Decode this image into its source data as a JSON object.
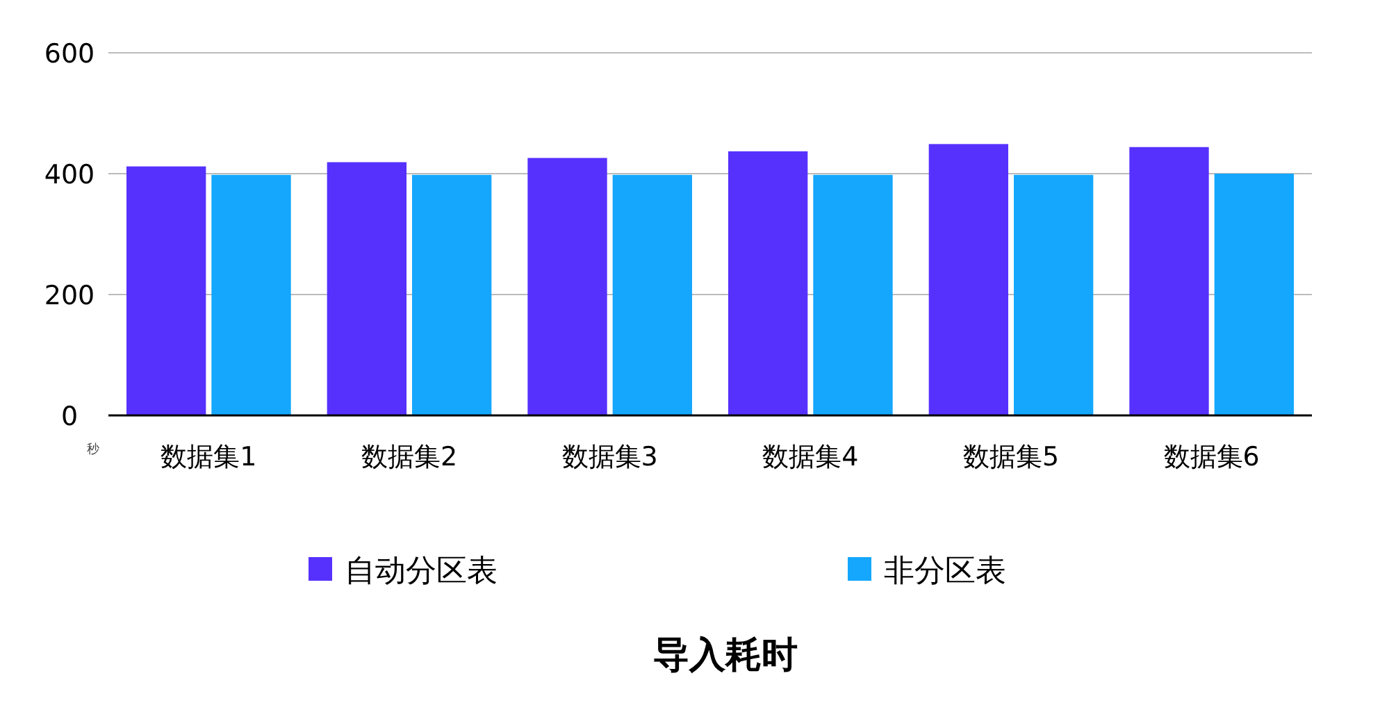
{
  "chart_data": {
    "type": "bar",
    "title": "导入耗时",
    "ylabel": "秒",
    "categories": [
      "数据集1",
      "数据集2",
      "数据集3",
      "数据集4",
      "数据集5",
      "数据集6"
    ],
    "series": [
      {
        "name": "自动分区表",
        "color": "#5631fe",
        "values": [
          412,
          419,
          426,
          437,
          449,
          444
        ]
      },
      {
        "name": "非分区表",
        "color": "#14a7fd",
        "values": [
          398,
          398,
          398,
          398,
          398,
          400
        ]
      }
    ],
    "ylim": [
      0,
      600
    ],
    "yticks": [
      0,
      200,
      400,
      600
    ],
    "grid": "y",
    "legend": "bottom"
  }
}
